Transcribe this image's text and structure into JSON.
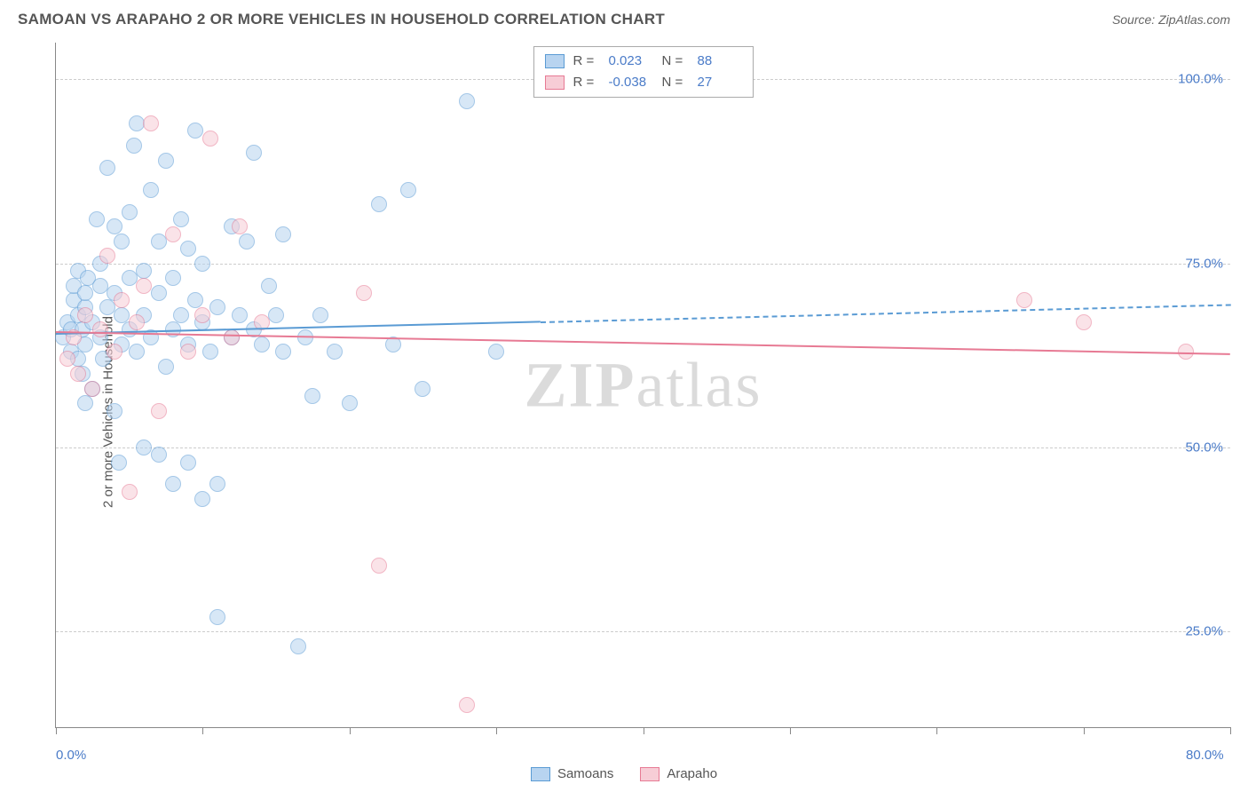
{
  "title": "SAMOAN VS ARAPAHO 2 OR MORE VEHICLES IN HOUSEHOLD CORRELATION CHART",
  "source_label": "Source: ",
  "source_name": "ZipAtlas.com",
  "ylabel": "2 or more Vehicles in Household",
  "watermark_1": "ZIP",
  "watermark_2": "atlas",
  "chart": {
    "type": "scatter",
    "background_color": "#ffffff",
    "grid_color": "#cccccc",
    "axis_color": "#888888",
    "text_color": "#555555",
    "value_color": "#4a7bc8",
    "xlim": [
      0,
      80
    ],
    "ylim": [
      12,
      105
    ],
    "xticks": [
      0,
      10,
      20,
      30,
      40,
      50,
      60,
      70,
      80
    ],
    "xtick_labels": {
      "0": "0.0%",
      "80": "80.0%"
    },
    "yticks": [
      25,
      50,
      75,
      100
    ],
    "ytick_labels": [
      "25.0%",
      "50.0%",
      "75.0%",
      "100.0%"
    ],
    "marker_radius": 9,
    "marker_border_width": 1.5,
    "series": [
      {
        "name": "Samoans",
        "fill": "#b8d4f0",
        "stroke": "#5a9bd4",
        "R": "0.023",
        "N": "88",
        "trend": {
          "x1": 0,
          "y1": 65.5,
          "x2": 80,
          "y2": 69.5,
          "solid_until_x": 33
        },
        "points": [
          [
            0.5,
            65
          ],
          [
            0.8,
            67
          ],
          [
            1,
            63
          ],
          [
            1,
            66
          ],
          [
            1.2,
            70
          ],
          [
            1.2,
            72
          ],
          [
            1.5,
            62
          ],
          [
            1.5,
            68
          ],
          [
            1.5,
            74
          ],
          [
            1.8,
            60
          ],
          [
            1.8,
            66
          ],
          [
            2,
            56
          ],
          [
            2,
            64
          ],
          [
            2,
            69
          ],
          [
            2,
            71
          ],
          [
            2.2,
            73
          ],
          [
            2.5,
            58
          ],
          [
            2.5,
            67
          ],
          [
            2.8,
            81
          ],
          [
            3,
            65
          ],
          [
            3,
            72
          ],
          [
            3,
            75
          ],
          [
            3.2,
            62
          ],
          [
            3.5,
            69
          ],
          [
            3.5,
            88
          ],
          [
            4,
            55
          ],
          [
            4,
            71
          ],
          [
            4,
            80
          ],
          [
            4.3,
            48
          ],
          [
            4.5,
            64
          ],
          [
            4.5,
            68
          ],
          [
            4.5,
            78
          ],
          [
            5,
            66
          ],
          [
            5,
            73
          ],
          [
            5,
            82
          ],
          [
            5.3,
            91
          ],
          [
            5.5,
            63
          ],
          [
            5.5,
            94
          ],
          [
            6,
            50
          ],
          [
            6,
            68
          ],
          [
            6,
            74
          ],
          [
            6.5,
            65
          ],
          [
            6.5,
            85
          ],
          [
            7,
            49
          ],
          [
            7,
            71
          ],
          [
            7,
            78
          ],
          [
            7.5,
            61
          ],
          [
            7.5,
            89
          ],
          [
            8,
            45
          ],
          [
            8,
            66
          ],
          [
            8,
            73
          ],
          [
            8.5,
            68
          ],
          [
            8.5,
            81
          ],
          [
            9,
            48
          ],
          [
            9,
            64
          ],
          [
            9,
            77
          ],
          [
            9.5,
            70
          ],
          [
            9.5,
            93
          ],
          [
            10,
            43
          ],
          [
            10,
            67
          ],
          [
            10,
            75
          ],
          [
            10.5,
            63
          ],
          [
            11,
            45
          ],
          [
            11,
            69
          ],
          [
            11,
            27
          ],
          [
            12,
            65
          ],
          [
            12,
            80
          ],
          [
            12.5,
            68
          ],
          [
            13,
            78
          ],
          [
            13.5,
            66
          ],
          [
            13.5,
            90
          ],
          [
            14,
            64
          ],
          [
            14.5,
            72
          ],
          [
            15,
            68
          ],
          [
            15.5,
            79
          ],
          [
            15.5,
            63
          ],
          [
            16.5,
            23
          ],
          [
            17,
            65
          ],
          [
            17.5,
            57
          ],
          [
            18,
            68
          ],
          [
            19,
            63
          ],
          [
            20,
            56
          ],
          [
            22,
            83
          ],
          [
            23,
            64
          ],
          [
            24,
            85
          ],
          [
            25,
            58
          ],
          [
            28,
            97
          ],
          [
            30,
            63
          ]
        ]
      },
      {
        "name": "Arapaho",
        "fill": "#f7cdd6",
        "stroke": "#e77a94",
        "R": "-0.038",
        "N": "27",
        "trend": {
          "x1": 0,
          "y1": 65.8,
          "x2": 80,
          "y2": 62.8,
          "solid_until_x": 80
        },
        "points": [
          [
            0.8,
            62
          ],
          [
            1.2,
            65
          ],
          [
            1.5,
            60
          ],
          [
            2,
            68
          ],
          [
            2.5,
            58
          ],
          [
            3,
            66
          ],
          [
            3.5,
            76
          ],
          [
            4,
            63
          ],
          [
            4.5,
            70
          ],
          [
            5,
            44
          ],
          [
            5.5,
            67
          ],
          [
            6,
            72
          ],
          [
            6.5,
            94
          ],
          [
            7,
            55
          ],
          [
            8,
            79
          ],
          [
            9,
            63
          ],
          [
            10,
            68
          ],
          [
            10.5,
            92
          ],
          [
            12,
            65
          ],
          [
            12.5,
            80
          ],
          [
            14,
            67
          ],
          [
            21,
            71
          ],
          [
            22,
            34
          ],
          [
            28,
            15
          ],
          [
            66,
            70
          ],
          [
            70,
            67
          ],
          [
            77,
            63
          ]
        ]
      }
    ]
  },
  "legend_top": {
    "r_label": "R =",
    "n_label": "N ="
  },
  "legend_bottom": [
    {
      "label": "Samoans",
      "fill": "#b8d4f0",
      "stroke": "#5a9bd4"
    },
    {
      "label": "Arapaho",
      "fill": "#f7cdd6",
      "stroke": "#e77a94"
    }
  ]
}
